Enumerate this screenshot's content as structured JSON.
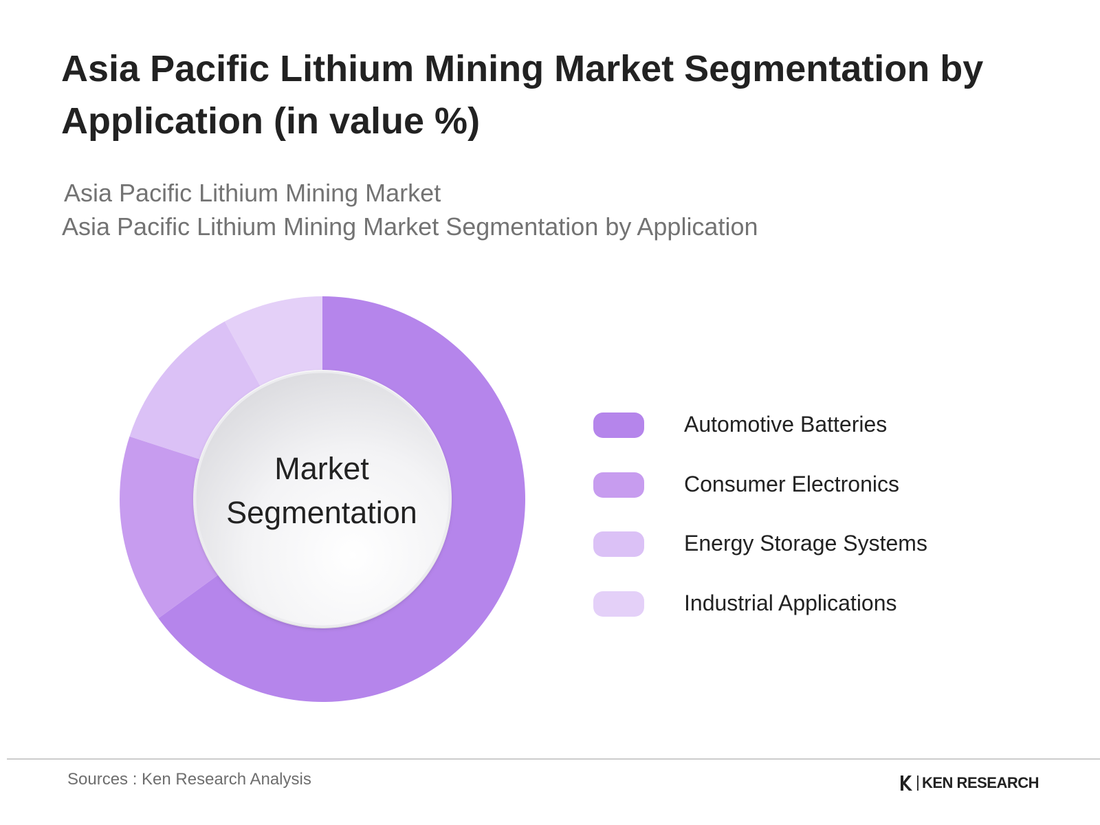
{
  "header": {
    "title": "Asia Pacific Lithium Mining Market Segmentation by Application (in value %)",
    "subtitle_1": "Asia Pacific Lithium Mining Market",
    "subtitle_2": "Asia Pacific Lithium Mining Market Segmentation by Application"
  },
  "chart_data": {
    "type": "pie",
    "variant": "donut",
    "center_label_line1": "Market",
    "center_label_line2": "Segmentation",
    "legend_position": "right",
    "series": [
      {
        "name": "Automotive Batteries",
        "value": 65,
        "color": "#b585eb"
      },
      {
        "name": "Consumer Electronics",
        "value": 15,
        "color": "#c79cef"
      },
      {
        "name": "Energy Storage Systems",
        "value": 12,
        "color": "#dbc1f6"
      },
      {
        "name": "Industrial Applications",
        "value": 8,
        "color": "#e4d0f8"
      }
    ]
  },
  "footer": {
    "sources": "Sources : Ken Research Analysis",
    "brand": "KEN RESEARCH"
  }
}
